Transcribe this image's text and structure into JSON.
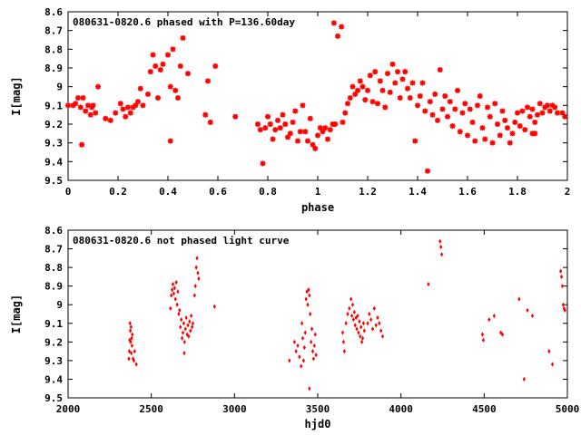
{
  "chart_data": [
    {
      "type": "scatter",
      "title": "080631-0820.6 phased with P=136.60day",
      "xlabel": "phase",
      "ylabel": "I[mag]",
      "xlim": [
        0,
        2
      ],
      "ylim": [
        9.5,
        8.6
      ],
      "y_inverted": true,
      "grid": false,
      "marker": "asterisk",
      "color": "#ff0000",
      "xticks": [
        "0",
        "0.2",
        "0.4",
        "0.6",
        "0.8",
        "1",
        "1.2",
        "1.4",
        "1.6",
        "1.8",
        "2"
      ],
      "yticks": [
        "8.6",
        "8.7",
        "8.8",
        "8.9",
        "9",
        "9.1",
        "9.2",
        "9.3",
        "9.4",
        "9.5"
      ],
      "points": [
        [
          0.0,
          9.1
        ],
        [
          0.02,
          9.1
        ],
        [
          0.03,
          9.09
        ],
        [
          0.04,
          9.06
        ],
        [
          0.05,
          9.11
        ],
        [
          0.06,
          9.06
        ],
        [
          0.07,
          9.13
        ],
        [
          0.08,
          9.1
        ],
        [
          0.09,
          9.15
        ],
        [
          0.1,
          9.1
        ],
        [
          0.11,
          9.14
        ],
        [
          0.055,
          9.31
        ],
        [
          0.095,
          9.11
        ],
        [
          0.12,
          9.0
        ],
        [
          0.15,
          9.17
        ],
        [
          0.17,
          9.18
        ],
        [
          0.19,
          9.14
        ],
        [
          0.21,
          9.09
        ],
        [
          0.22,
          9.12
        ],
        [
          0.23,
          9.16
        ],
        [
          0.24,
          9.11
        ],
        [
          0.25,
          9.14
        ],
        [
          0.26,
          9.11
        ],
        [
          0.27,
          9.1
        ],
        [
          0.28,
          9.08
        ],
        [
          0.29,
          9.01
        ],
        [
          0.3,
          9.1
        ],
        [
          0.32,
          9.04
        ],
        [
          0.33,
          8.92
        ],
        [
          0.34,
          8.83
        ],
        [
          0.35,
          8.89
        ],
        [
          0.36,
          9.06
        ],
        [
          0.37,
          8.91
        ],
        [
          0.38,
          8.88
        ],
        [
          0.4,
          8.83
        ],
        [
          0.42,
          8.8
        ],
        [
          0.41,
          9.0
        ],
        [
          0.43,
          9.02
        ],
        [
          0.44,
          9.06
        ],
        [
          0.45,
          8.89
        ],
        [
          0.46,
          8.74
        ],
        [
          0.48,
          8.93
        ],
        [
          0.41,
          9.29
        ],
        [
          0.56,
          8.97
        ],
        [
          0.59,
          8.89
        ],
        [
          0.55,
          9.15
        ],
        [
          0.57,
          9.19
        ],
        [
          0.67,
          9.16
        ],
        [
          0.76,
          9.2
        ],
        [
          0.77,
          9.23
        ],
        [
          0.78,
          9.41
        ],
        [
          0.79,
          9.22
        ],
        [
          0.8,
          9.16
        ],
        [
          0.81,
          9.2
        ],
        [
          0.82,
          9.28
        ],
        [
          0.83,
          9.23
        ],
        [
          0.84,
          9.18
        ],
        [
          0.85,
          9.22
        ],
        [
          0.86,
          9.15
        ],
        [
          0.87,
          9.2
        ],
        [
          0.88,
          9.27
        ],
        [
          0.89,
          9.25
        ],
        [
          0.9,
          9.19
        ],
        [
          0.91,
          9.13
        ],
        [
          0.92,
          9.29
        ],
        [
          0.93,
          9.24
        ],
        [
          0.94,
          9.1
        ],
        [
          0.95,
          9.24
        ],
        [
          0.96,
          9.29
        ],
        [
          0.97,
          9.17
        ],
        [
          0.98,
          9.31
        ],
        [
          0.99,
          9.33
        ],
        [
          1.0,
          9.26
        ],
        [
          1.01,
          9.22
        ],
        [
          1.02,
          9.24
        ],
        [
          1.03,
          9.22
        ],
        [
          1.04,
          9.28
        ],
        [
          1.05,
          9.23
        ],
        [
          1.06,
          9.2
        ],
        [
          1.07,
          9.2
        ],
        [
          1.065,
          8.66
        ],
        [
          1.08,
          8.73
        ],
        [
          1.095,
          8.68
        ],
        [
          1.1,
          9.19
        ],
        [
          1.11,
          9.14
        ],
        [
          1.12,
          9.09
        ],
        [
          1.13,
          9.06
        ],
        [
          1.14,
          9.0
        ],
        [
          1.15,
          9.04
        ],
        [
          1.16,
          9.02
        ],
        [
          1.17,
          8.97
        ],
        [
          1.18,
          9.0
        ],
        [
          1.19,
          9.07
        ],
        [
          1.2,
          9.02
        ],
        [
          1.21,
          8.94
        ],
        [
          1.22,
          9.08
        ],
        [
          1.23,
          8.92
        ],
        [
          1.24,
          9.09
        ],
        [
          1.25,
          8.97
        ],
        [
          1.26,
          9.02
        ],
        [
          1.27,
          9.11
        ],
        [
          1.28,
          8.93
        ],
        [
          1.29,
          9.03
        ],
        [
          1.3,
          8.88
        ],
        [
          1.31,
          8.98
        ],
        [
          1.32,
          8.92
        ],
        [
          1.33,
          9.06
        ],
        [
          1.34,
          8.96
        ],
        [
          1.35,
          8.92
        ],
        [
          1.36,
          9.01
        ],
        [
          1.37,
          9.06
        ],
        [
          1.38,
          8.98
        ],
        [
          1.39,
          9.29
        ],
        [
          1.4,
          9.1
        ],
        [
          1.41,
          9.05
        ],
        [
          1.42,
          8.98
        ],
        [
          1.43,
          9.13
        ],
        [
          1.44,
          9.45
        ],
        [
          1.45,
          9.08
        ],
        [
          1.46,
          9.15
        ],
        [
          1.47,
          9.04
        ],
        [
          1.48,
          9.18
        ],
        [
          1.49,
          8.91
        ],
        [
          1.5,
          9.12
        ],
        [
          1.51,
          9.05
        ],
        [
          1.52,
          9.16
        ],
        [
          1.53,
          9.08
        ],
        [
          1.54,
          9.21
        ],
        [
          1.55,
          9.12
        ],
        [
          1.56,
          9.02
        ],
        [
          1.57,
          9.24
        ],
        [
          1.58,
          9.14
        ],
        [
          1.59,
          9.09
        ],
        [
          1.6,
          9.26
        ],
        [
          1.61,
          9.12
        ],
        [
          1.62,
          9.19
        ],
        [
          1.63,
          9.29
        ],
        [
          1.64,
          9.1
        ],
        [
          1.65,
          9.05
        ],
        [
          1.66,
          9.22
        ],
        [
          1.67,
          9.28
        ],
        [
          1.68,
          9.11
        ],
        [
          1.69,
          9.16
        ],
        [
          1.7,
          9.3
        ],
        [
          1.71,
          9.09
        ],
        [
          1.72,
          9.2
        ],
        [
          1.73,
          9.26
        ],
        [
          1.74,
          9.13
        ],
        [
          1.75,
          9.18
        ],
        [
          1.76,
          9.22
        ],
        [
          1.77,
          9.3
        ],
        [
          1.78,
          9.25
        ],
        [
          1.79,
          9.19
        ],
        [
          1.8,
          9.14
        ],
        [
          1.81,
          9.21
        ],
        [
          1.82,
          9.13
        ],
        [
          1.83,
          9.23
        ],
        [
          1.84,
          9.11
        ],
        [
          1.85,
          9.16
        ],
        [
          1.86,
          9.12
        ],
        [
          1.87,
          9.19
        ],
        [
          1.88,
          9.15
        ],
        [
          1.89,
          9.09
        ],
        [
          1.9,
          9.14
        ],
        [
          1.91,
          9.11
        ],
        [
          1.92,
          9.1
        ],
        [
          1.93,
          9.13
        ],
        [
          1.94,
          9.1
        ],
        [
          1.95,
          9.11
        ],
        [
          1.96,
          9.14
        ],
        [
          1.98,
          9.14
        ],
        [
          1.99,
          9.16
        ],
        [
          1.86,
          9.25
        ],
        [
          1.87,
          9.25
        ]
      ]
    },
    {
      "type": "scatter",
      "title": "080631-0820.6 not phased light curve",
      "xlabel": "hjd0",
      "ylabel": "I[mag]",
      "xlim": [
        2000,
        5000
      ],
      "ylim": [
        9.5,
        8.6
      ],
      "y_inverted": true,
      "grid": false,
      "marker": "diamond",
      "color": "#ff0000",
      "xticks": [
        "2000",
        "2500",
        "3000",
        "3500",
        "4000",
        "4500",
        "5000"
      ],
      "yticks": [
        "8.6",
        "8.7",
        "8.8",
        "8.9",
        "9",
        "9.1",
        "9.2",
        "9.3",
        "9.4",
        "9.5"
      ],
      "points": [
        [
          2365,
          9.29
        ],
        [
          2368,
          9.25
        ],
        [
          2370,
          9.19
        ],
        [
          2372,
          9.1
        ],
        [
          2374,
          9.14
        ],
        [
          2376,
          9.2
        ],
        [
          2378,
          9.12
        ],
        [
          2380,
          9.26
        ],
        [
          2382,
          9.18
        ],
        [
          2384,
          9.22
        ],
        [
          2386,
          9.16
        ],
        [
          2390,
          9.29
        ],
        [
          2395,
          9.3
        ],
        [
          2400,
          9.25
        ],
        [
          2410,
          9.32
        ],
        [
          2615,
          9.02
        ],
        [
          2620,
          8.95
        ],
        [
          2625,
          8.92
        ],
        [
          2630,
          8.89
        ],
        [
          2635,
          8.94
        ],
        [
          2640,
          8.91
        ],
        [
          2645,
          8.97
        ],
        [
          2650,
          8.88
        ],
        [
          2655,
          9.0
        ],
        [
          2660,
          8.93
        ],
        [
          2665,
          9.05
        ],
        [
          2670,
          9.03
        ],
        [
          2675,
          9.12
        ],
        [
          2680,
          9.08
        ],
        [
          2685,
          9.18
        ],
        [
          2690,
          9.15
        ],
        [
          2695,
          9.1
        ],
        [
          2700,
          9.2
        ],
        [
          2705,
          9.13
        ],
        [
          2710,
          9.07
        ],
        [
          2715,
          9.16
        ],
        [
          2720,
          9.11
        ],
        [
          2725,
          9.17
        ],
        [
          2730,
          9.09
        ],
        [
          2735,
          9.14
        ],
        [
          2740,
          9.06
        ],
        [
          2745,
          9.12
        ],
        [
          2750,
          9.1
        ],
        [
          2698,
          9.26
        ],
        [
          2760,
          8.95
        ],
        [
          2765,
          8.9
        ],
        [
          2770,
          8.8
        ],
        [
          2775,
          8.75
        ],
        [
          2780,
          8.83
        ],
        [
          2785,
          8.86
        ],
        [
          2880,
          9.01
        ],
        [
          3330,
          9.3
        ],
        [
          3360,
          9.2
        ],
        [
          3370,
          9.25
        ],
        [
          3380,
          9.22
        ],
        [
          3390,
          9.28
        ],
        [
          3400,
          9.33
        ],
        [
          3405,
          9.1
        ],
        [
          3410,
          9.18
        ],
        [
          3415,
          9.3
        ],
        [
          3420,
          9.23
        ],
        [
          3425,
          9.15
        ],
        [
          3430,
          8.97
        ],
        [
          3435,
          8.93
        ],
        [
          3440,
          9.0
        ],
        [
          3445,
          8.92
        ],
        [
          3450,
          8.95
        ],
        [
          3455,
          9.05
        ],
        [
          3460,
          9.2
        ],
        [
          3465,
          9.13
        ],
        [
          3470,
          9.25
        ],
        [
          3475,
          9.29
        ],
        [
          3480,
          9.22
        ],
        [
          3485,
          9.16
        ],
        [
          3490,
          9.27
        ],
        [
          3450,
          9.45
        ],
        [
          3650,
          9.15
        ],
        [
          3655,
          9.2
        ],
        [
          3660,
          9.25
        ],
        [
          3670,
          9.1
        ],
        [
          3680,
          9.05
        ],
        [
          3690,
          9.02
        ],
        [
          3700,
          8.97
        ],
        [
          3705,
          9.06
        ],
        [
          3710,
          9.0
        ],
        [
          3715,
          9.08
        ],
        [
          3720,
          9.04
        ],
        [
          3725,
          9.11
        ],
        [
          3730,
          9.07
        ],
        [
          3735,
          9.13
        ],
        [
          3740,
          9.06
        ],
        [
          3745,
          9.15
        ],
        [
          3750,
          9.09
        ],
        [
          3755,
          9.17
        ],
        [
          3760,
          9.12
        ],
        [
          3765,
          9.2
        ],
        [
          3770,
          9.18
        ],
        [
          3775,
          9.1
        ],
        [
          3780,
          9.14
        ],
        [
          3800,
          9.1
        ],
        [
          3810,
          9.05
        ],
        [
          3820,
          9.08
        ],
        [
          3830,
          9.13
        ],
        [
          3840,
          9.02
        ],
        [
          3850,
          9.11
        ],
        [
          3860,
          9.07
        ],
        [
          3870,
          9.1
        ],
        [
          3880,
          9.14
        ],
        [
          3890,
          9.17
        ],
        [
          4165,
          8.89
        ],
        [
          4235,
          8.66
        ],
        [
          4240,
          8.69
        ],
        [
          4245,
          8.73
        ],
        [
          4490,
          9.16
        ],
        [
          4495,
          9.19
        ],
        [
          4530,
          9.08
        ],
        [
          4560,
          9.06
        ],
        [
          4600,
          9.15
        ],
        [
          4610,
          9.16
        ],
        [
          4710,
          8.97
        ],
        [
          4740,
          9.4
        ],
        [
          4760,
          9.03
        ],
        [
          4790,
          9.06
        ],
        [
          4890,
          9.25
        ],
        [
          4910,
          9.32
        ],
        [
          4960,
          8.82
        ],
        [
          4965,
          8.85
        ],
        [
          4970,
          8.9
        ],
        [
          4975,
          9.0
        ],
        [
          4980,
          9.02
        ],
        [
          4985,
          9.03
        ]
      ]
    }
  ]
}
